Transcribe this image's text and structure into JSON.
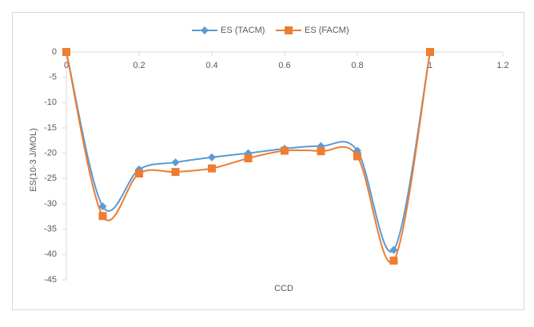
{
  "chart_data": {
    "type": "scatter-smooth",
    "x_label": "CCD",
    "y_label": "ES(10-3 J/MOL)",
    "x": [
      0,
      0.1,
      0.2,
      0.3,
      0.4,
      0.5,
      0.6,
      0.7,
      0.8,
      0.9,
      1
    ],
    "series": [
      {
        "name": "ES (TACM)",
        "color": "#5b9bd5",
        "marker": "diamond",
        "values": [
          0,
          -30.5,
          -23.2,
          -21.8,
          -20.8,
          -20,
          -19.1,
          -18.6,
          -19.5,
          -39.1,
          0
        ]
      },
      {
        "name": "ES (FACM)",
        "color": "#ed7d31",
        "marker": "square",
        "values": [
          0,
          -32.4,
          -24,
          -23.7,
          -23,
          -21,
          -19.5,
          -19.6,
          -20.6,
          -41.2,
          0
        ]
      }
    ],
    "xlim": [
      0,
      1.2
    ],
    "xticks": [
      0,
      0.2,
      0.4,
      0.6,
      0.8,
      1,
      1.2
    ],
    "ylim": [
      -45,
      0
    ],
    "yticks": [
      0,
      -5,
      -10,
      -15,
      -20,
      -25,
      -30,
      -35,
      -40,
      -45
    ],
    "grid": false,
    "legend": "top"
  }
}
